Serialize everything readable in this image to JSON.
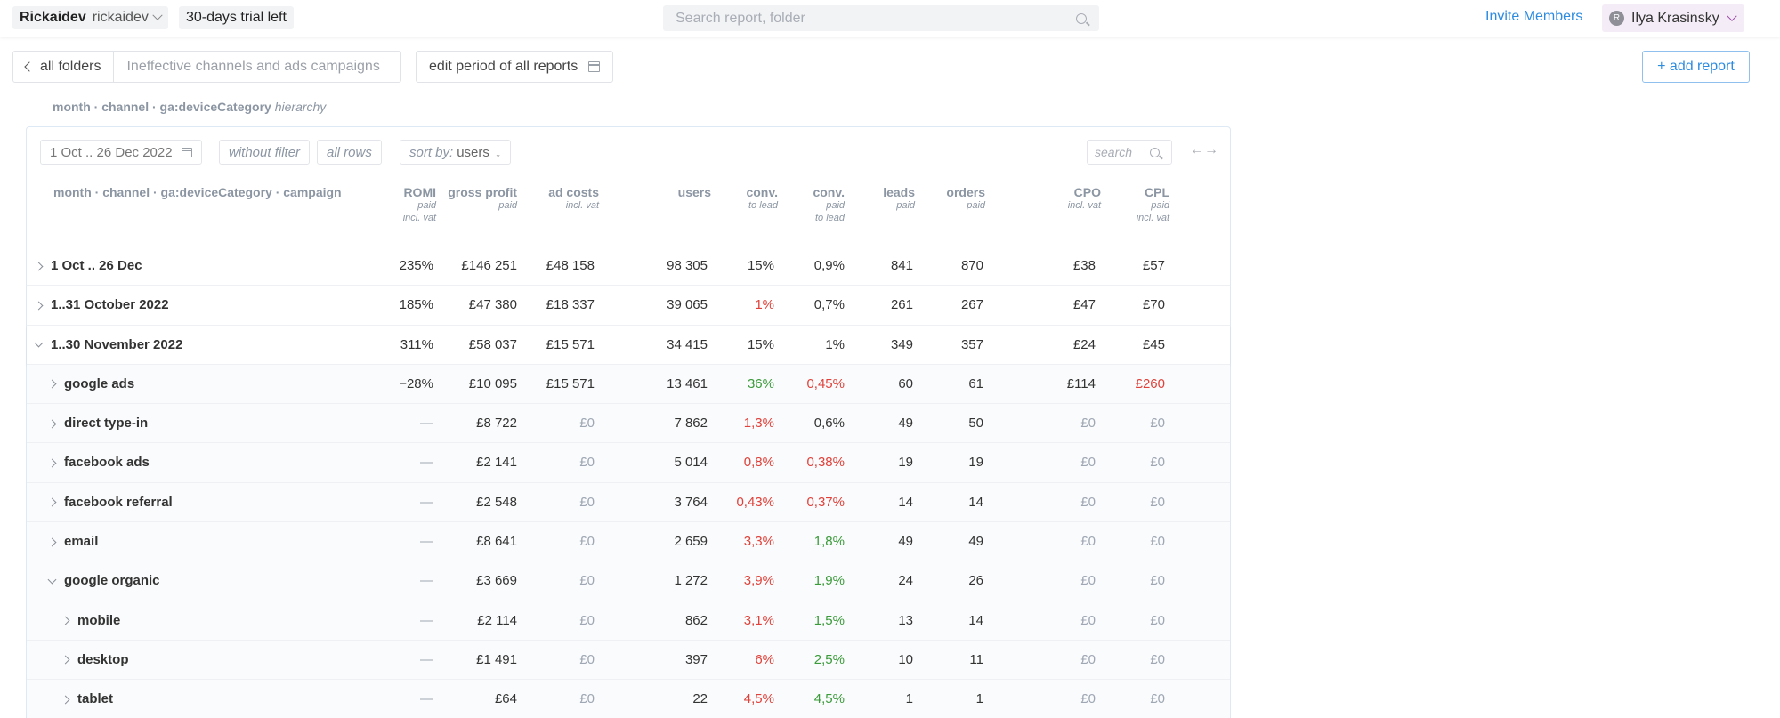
{
  "topbar": {
    "workspace_name": "Rickaidev",
    "workspace_slug": "rickaidev",
    "trial": "30-days trial left",
    "search_placeholder": "Search report, folder",
    "invite": "Invite Members",
    "user_initial": "R",
    "user_name": "Ilya Krasinsky"
  },
  "subbar": {
    "all_folders": "all folders",
    "report_name": "Ineffective channels and ads campaigns",
    "edit_period": "edit period of all reports",
    "add_report": "+ add report"
  },
  "hierarchy": {
    "path": "month · channel · ga:deviceCategory",
    "suffix": "hierarchy"
  },
  "toolbar": {
    "date_range": "1 Oct .. 26 Dec 2022",
    "filter": "without filter",
    "rows": "all rows",
    "sort_prefix": "sort by:",
    "sort_field": "users",
    "sort_arrow": "↓",
    "search_placeholder": "search",
    "expand": "←→"
  },
  "columns": [
    {
      "title": "month · channel · ga:deviceCategory · campaign",
      "sub1": "",
      "sub2": ""
    },
    {
      "title": "ROMI",
      "sub1": "paid",
      "sub2": "incl. vat"
    },
    {
      "title": "gross profit",
      "sub1": "paid",
      "sub2": ""
    },
    {
      "title": "ad costs",
      "sub1": "incl. vat",
      "sub2": ""
    },
    {
      "title": "users",
      "sub1": "",
      "sub2": ""
    },
    {
      "title": "conv.",
      "sub1": "to lead",
      "sub2": ""
    },
    {
      "title": "conv.",
      "sub1": "paid",
      "sub2": "to lead"
    },
    {
      "title": "leads",
      "sub1": "paid",
      "sub2": ""
    },
    {
      "title": "orders",
      "sub1": "paid",
      "sub2": ""
    },
    {
      "title": "CPO",
      "sub1": "incl. vat",
      "sub2": ""
    },
    {
      "title": "CPL",
      "sub1": "paid",
      "sub2": "incl. vat"
    }
  ],
  "rows": [
    {
      "label": "1 Oct .. 26 Dec",
      "romi": "235%",
      "gross": "£146 251",
      "ad": "£48 158",
      "users": "98 305",
      "conv1": "15%",
      "conv2": "0,9%",
      "leads": "841",
      "orders": "870",
      "cpo": "£38",
      "cpl": "£57"
    },
    {
      "label": "1..31 October 2022",
      "romi": "185%",
      "gross": "£47 380",
      "ad": "£18 337",
      "users": "39 065",
      "conv1": "1%",
      "conv2": "0,7%",
      "leads": "261",
      "orders": "267",
      "cpo": "£47",
      "cpl": "£70"
    },
    {
      "label": "1..30 November 2022",
      "romi": "311%",
      "gross": "£58 037",
      "ad": "£15 571",
      "users": "34 415",
      "conv1": "15%",
      "conv2": "1%",
      "leads": "349",
      "orders": "357",
      "cpo": "£24",
      "cpl": "£45"
    },
    {
      "label": "google ads",
      "romi": "−28%",
      "gross": "£10 095",
      "ad": "£15 571",
      "users": "13 461",
      "conv1": "36%",
      "conv2": "0,45%",
      "leads": "60",
      "orders": "61",
      "cpo": "£114",
      "cpl": "£260"
    },
    {
      "label": "direct type-in",
      "romi": "—",
      "gross": "£8 722",
      "ad": "£0",
      "users": "7 862",
      "conv1": "1,3%",
      "conv2": "0,6%",
      "leads": "49",
      "orders": "50",
      "cpo": "£0",
      "cpl": "£0"
    },
    {
      "label": "facebook ads",
      "romi": "—",
      "gross": "£2 141",
      "ad": "£0",
      "users": "5 014",
      "conv1": "0,8%",
      "conv2": "0,38%",
      "leads": "19",
      "orders": "19",
      "cpo": "£0",
      "cpl": "£0"
    },
    {
      "label": "facebook referral",
      "romi": "—",
      "gross": "£2 548",
      "ad": "£0",
      "users": "3 764",
      "conv1": "0,43%",
      "conv2": "0,37%",
      "leads": "14",
      "orders": "14",
      "cpo": "£0",
      "cpl": "£0"
    },
    {
      "label": "email",
      "romi": "—",
      "gross": "£8 641",
      "ad": "£0",
      "users": "2 659",
      "conv1": "3,3%",
      "conv2": "1,8%",
      "leads": "49",
      "orders": "49",
      "cpo": "£0",
      "cpl": "£0"
    },
    {
      "label": "google organic",
      "romi": "—",
      "gross": "£3 669",
      "ad": "£0",
      "users": "1 272",
      "conv1": "3,9%",
      "conv2": "1,9%",
      "leads": "24",
      "orders": "26",
      "cpo": "£0",
      "cpl": "£0"
    },
    {
      "label": "mobile",
      "romi": "—",
      "gross": "£2 114",
      "ad": "£0",
      "users": "862",
      "conv1": "3,1%",
      "conv2": "1,5%",
      "leads": "13",
      "orders": "14",
      "cpo": "£0",
      "cpl": "£0"
    },
    {
      "label": "desktop",
      "romi": "—",
      "gross": "£1 491",
      "ad": "£0",
      "users": "397",
      "conv1": "6%",
      "conv2": "2,5%",
      "leads": "10",
      "orders": "11",
      "cpo": "£0",
      "cpl": "£0"
    },
    {
      "label": "tablet",
      "romi": "—",
      "gross": "£64",
      "ad": "£0",
      "users": "22",
      "conv1": "4,5%",
      "conv2": "4,5%",
      "leads": "1",
      "orders": "1",
      "cpo": "£0",
      "cpl": "£0"
    }
  ],
  "colors": {
    "accent": "#2e8ce0",
    "negative": "#e0413a",
    "positive": "#3a9b3a",
    "muted": "#9ea7b3"
  }
}
